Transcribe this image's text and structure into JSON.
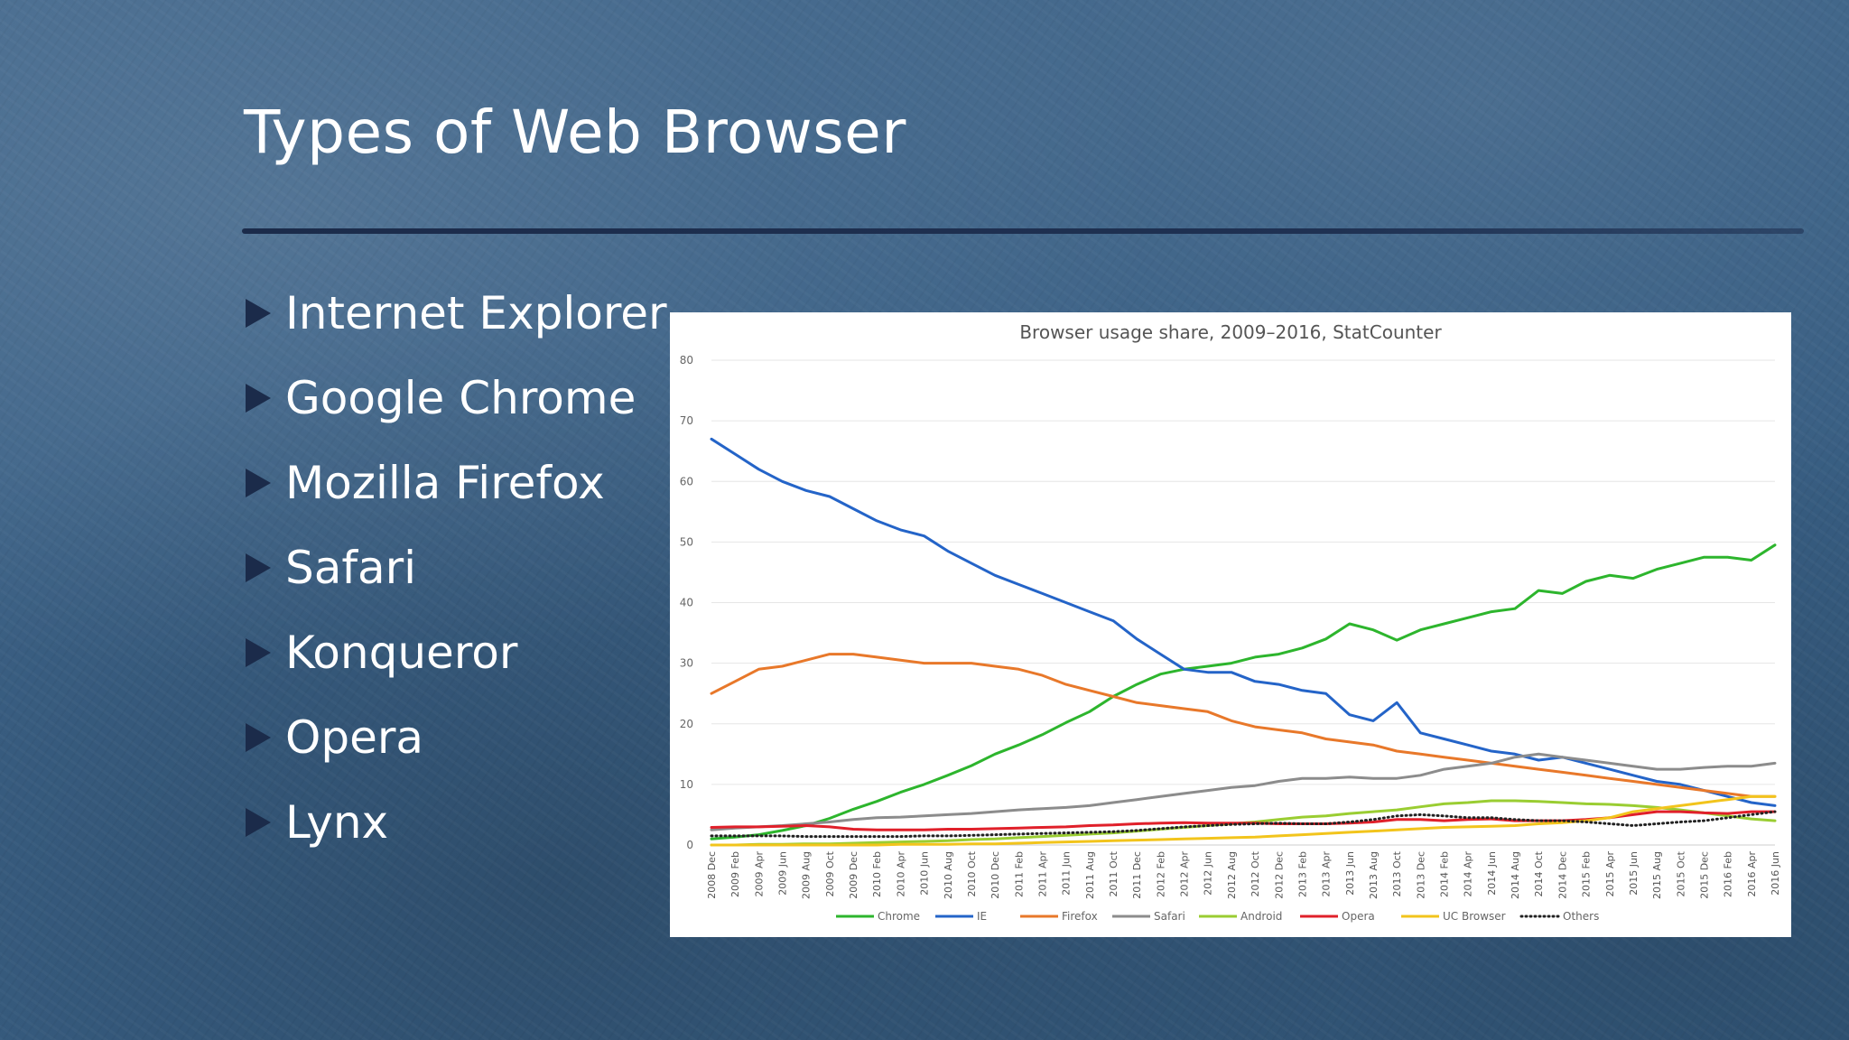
{
  "slide": {
    "title": "Types of Web Browser",
    "bullets": [
      "Internet Explorer",
      "Google Chrome",
      "Mozilla Firefox",
      "Safari",
      "Konqueror",
      "Opera",
      "Lynx"
    ]
  },
  "colors": {
    "accent_dark": "#1b2b4a",
    "background": "#3e6489"
  },
  "chart_data": {
    "type": "line",
    "title": "Browser usage share, 2009–2016, StatCounter",
    "xlabel": "",
    "ylabel": "",
    "ylim": [
      0,
      80
    ],
    "yticks": [
      0,
      10,
      20,
      30,
      40,
      50,
      60,
      70,
      80
    ],
    "grid": true,
    "legend_position": "bottom",
    "x": [
      "2008 Dec",
      "2009 Feb",
      "2009 Apr",
      "2009 Jun",
      "2009 Aug",
      "2009 Oct",
      "2009 Dec",
      "2010 Feb",
      "2010 Apr",
      "2010 Jun",
      "2010 Aug",
      "2010 Oct",
      "2010 Dec",
      "2011 Feb",
      "2011 Apr",
      "2011 Jun",
      "2011 Aug",
      "2011 Oct",
      "2011 Dec",
      "2012 Feb",
      "2012 Apr",
      "2012 Jun",
      "2012 Aug",
      "2012 Oct",
      "2012 Dec",
      "2013 Feb",
      "2013 Apr",
      "2013 Jun",
      "2013 Aug",
      "2013 Oct",
      "2013 Dec",
      "2014 Feb",
      "2014 Apr",
      "2014 Jun",
      "2014 Aug",
      "2014 Oct",
      "2014 Dec",
      "2015 Feb",
      "2015 Apr",
      "2015 Jun",
      "2015 Aug",
      "2015 Oct",
      "2015 Dec",
      "2016 Feb",
      "2016 Apr",
      "2016 Jun"
    ],
    "series": [
      {
        "name": "Chrome",
        "color": "#2db52d",
        "style": "solid",
        "values": [
          1.0,
          1.3,
          1.7,
          2.4,
          3.2,
          4.4,
          5.9,
          7.2,
          8.7,
          10.0,
          11.5,
          13.1,
          15.0,
          16.5,
          18.2,
          20.2,
          22.0,
          24.5,
          26.5,
          28.2,
          29.0,
          29.5,
          30.0,
          31.0,
          31.5,
          32.5,
          34.0,
          36.5,
          35.5,
          33.8,
          35.5,
          36.5,
          37.5,
          38.5,
          39.0,
          42.0,
          41.5,
          43.5,
          44.5,
          44.0,
          45.5,
          46.5,
          47.5,
          47.5,
          47.0,
          49.5
        ]
      },
      {
        "name": "IE",
        "color": "#2464c8",
        "style": "solid",
        "values": [
          67.0,
          64.5,
          62.0,
          60.0,
          58.5,
          57.5,
          55.5,
          53.5,
          52.0,
          51.0,
          48.5,
          46.5,
          44.5,
          43.0,
          41.5,
          40.0,
          38.5,
          37.0,
          34.0,
          31.5,
          29.0,
          28.5,
          28.5,
          27.0,
          26.5,
          25.5,
          25.0,
          21.5,
          20.5,
          23.5,
          18.5,
          17.5,
          16.5,
          15.5,
          15.0,
          14.0,
          14.5,
          13.5,
          12.5,
          11.5,
          10.5,
          10.0,
          9.0,
          8.0,
          7.0,
          6.5
        ]
      },
      {
        "name": "Firefox",
        "color": "#e8782a",
        "style": "solid",
        "values": [
          25.0,
          27.0,
          29.0,
          29.5,
          30.5,
          31.5,
          31.5,
          31.0,
          30.5,
          30.0,
          30.0,
          30.0,
          29.5,
          29.0,
          28.0,
          26.5,
          25.5,
          24.5,
          23.5,
          23.0,
          22.5,
          22.0,
          20.5,
          19.5,
          19.0,
          18.5,
          17.5,
          17.0,
          16.5,
          15.5,
          15.0,
          14.5,
          14.0,
          13.5,
          13.0,
          12.5,
          12.0,
          11.5,
          11.0,
          10.5,
          10.0,
          9.5,
          9.0,
          8.5,
          8.0,
          8.0
        ]
      },
      {
        "name": "Safari",
        "color": "#8c8c8c",
        "style": "solid",
        "values": [
          2.5,
          2.8,
          3.0,
          3.2,
          3.5,
          3.8,
          4.2,
          4.5,
          4.6,
          4.8,
          5.0,
          5.2,
          5.5,
          5.8,
          6.0,
          6.2,
          6.5,
          7.0,
          7.5,
          8.0,
          8.5,
          9.0,
          9.5,
          9.8,
          10.5,
          11.0,
          11.0,
          11.2,
          11.0,
          11.0,
          11.5,
          12.5,
          13.0,
          13.5,
          14.5,
          15.0,
          14.5,
          14.0,
          13.5,
          13.0,
          12.5,
          12.5,
          12.8,
          13.0,
          13.0,
          13.5
        ]
      },
      {
        "name": "Android",
        "color": "#9acd32",
        "style": "solid",
        "values": [
          0.0,
          0.0,
          0.1,
          0.1,
          0.2,
          0.2,
          0.3,
          0.4,
          0.5,
          0.6,
          0.7,
          0.9,
          1.0,
          1.2,
          1.4,
          1.6,
          1.8,
          2.0,
          2.3,
          2.6,
          2.9,
          3.2,
          3.5,
          3.8,
          4.2,
          4.6,
          4.8,
          5.2,
          5.5,
          5.8,
          6.3,
          6.8,
          7.0,
          7.3,
          7.3,
          7.2,
          7.0,
          6.8,
          6.7,
          6.5,
          6.2,
          5.8,
          5.3,
          4.8,
          4.3,
          4.0
        ]
      },
      {
        "name": "Opera",
        "color": "#e0202a",
        "style": "solid",
        "values": [
          2.9,
          3.0,
          3.0,
          3.1,
          3.2,
          3.0,
          2.6,
          2.5,
          2.5,
          2.5,
          2.6,
          2.6,
          2.7,
          2.8,
          2.9,
          3.0,
          3.2,
          3.3,
          3.5,
          3.6,
          3.7,
          3.6,
          3.6,
          3.6,
          3.5,
          3.5,
          3.5,
          3.6,
          3.8,
          4.2,
          4.2,
          4.0,
          4.2,
          4.3,
          4.0,
          4.0,
          4.0,
          4.2,
          4.5,
          5.0,
          5.5,
          5.5,
          5.3,
          5.2,
          5.5,
          5.5
        ]
      },
      {
        "name": "UC Browser",
        "color": "#f2c41c",
        "style": "solid",
        "values": [
          0.0,
          0.0,
          0.0,
          0.0,
          0.0,
          0.0,
          0.0,
          0.0,
          0.1,
          0.1,
          0.1,
          0.2,
          0.2,
          0.3,
          0.4,
          0.5,
          0.6,
          0.7,
          0.8,
          0.9,
          1.0,
          1.1,
          1.2,
          1.3,
          1.5,
          1.7,
          1.9,
          2.1,
          2.3,
          2.5,
          2.7,
          2.9,
          3.0,
          3.1,
          3.2,
          3.5,
          3.7,
          4.0,
          4.5,
          5.5,
          6.0,
          6.5,
          7.0,
          7.5,
          8.0,
          8.0
        ]
      },
      {
        "name": "Others",
        "color": "#222222",
        "style": "dotted",
        "values": [
          1.5,
          1.5,
          1.5,
          1.5,
          1.4,
          1.4,
          1.4,
          1.4,
          1.4,
          1.5,
          1.5,
          1.6,
          1.7,
          1.8,
          1.9,
          2.0,
          2.1,
          2.2,
          2.4,
          2.7,
          3.0,
          3.2,
          3.4,
          3.5,
          3.6,
          3.5,
          3.5,
          3.8,
          4.2,
          4.8,
          5.0,
          4.8,
          4.5,
          4.5,
          4.2,
          4.0,
          4.0,
          3.8,
          3.5,
          3.2,
          3.5,
          3.8,
          4.0,
          4.5,
          5.0,
          5.5
        ]
      }
    ]
  }
}
